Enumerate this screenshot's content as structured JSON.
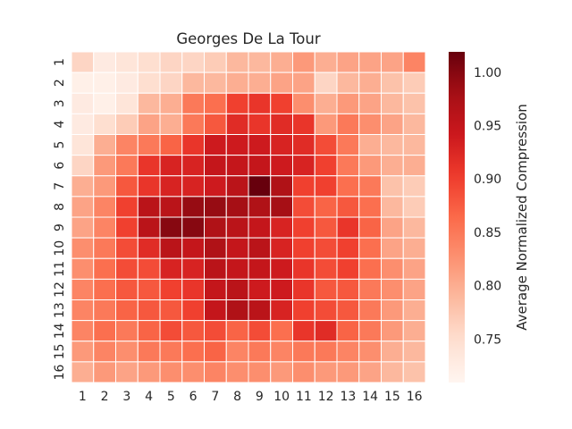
{
  "chart_data": {
    "type": "heatmap",
    "title": "Georges De La Tour",
    "xlabel": "",
    "ylabel": "",
    "x_categories": [
      "1",
      "2",
      "3",
      "4",
      "5",
      "6",
      "7",
      "8",
      "9",
      "10",
      "11",
      "12",
      "13",
      "14",
      "15",
      "16"
    ],
    "y_categories": [
      "1",
      "2",
      "3",
      "4",
      "5",
      "6",
      "7",
      "8",
      "9",
      "10",
      "11",
      "12",
      "13",
      "14",
      "15",
      "16"
    ],
    "values": [
      [
        0.76,
        0.73,
        0.74,
        0.75,
        0.76,
        0.76,
        0.77,
        0.79,
        0.79,
        0.8,
        0.82,
        0.8,
        0.81,
        0.81,
        0.81,
        0.84
      ],
      [
        0.72,
        0.72,
        0.73,
        0.75,
        0.76,
        0.79,
        0.79,
        0.8,
        0.8,
        0.81,
        0.81,
        0.76,
        0.79,
        0.8,
        0.78,
        0.77
      ],
      [
        0.73,
        0.72,
        0.74,
        0.79,
        0.8,
        0.85,
        0.86,
        0.9,
        0.91,
        0.9,
        0.83,
        0.8,
        0.82,
        0.81,
        0.79,
        0.78
      ],
      [
        0.73,
        0.75,
        0.77,
        0.81,
        0.8,
        0.85,
        0.88,
        0.92,
        0.91,
        0.92,
        0.91,
        0.82,
        0.85,
        0.83,
        0.81,
        0.79
      ],
      [
        0.74,
        0.8,
        0.84,
        0.85,
        0.87,
        0.91,
        0.94,
        0.94,
        0.94,
        0.93,
        0.92,
        0.89,
        0.85,
        0.8,
        0.79,
        0.79
      ],
      [
        0.76,
        0.82,
        0.85,
        0.91,
        0.93,
        0.93,
        0.95,
        0.95,
        0.95,
        0.94,
        0.93,
        0.9,
        0.85,
        0.82,
        0.8,
        0.8
      ],
      [
        0.8,
        0.82,
        0.88,
        0.91,
        0.93,
        0.93,
        0.94,
        0.96,
        1.02,
        0.97,
        0.9,
        0.9,
        0.86,
        0.85,
        0.78,
        0.77
      ],
      [
        0.81,
        0.84,
        0.9,
        0.96,
        0.96,
        0.99,
        0.99,
        0.98,
        0.97,
        0.98,
        0.89,
        0.87,
        0.88,
        0.86,
        0.79,
        0.77
      ],
      [
        0.81,
        0.84,
        0.9,
        0.96,
        1.0,
        1.0,
        0.97,
        0.96,
        0.95,
        0.93,
        0.9,
        0.88,
        0.91,
        0.87,
        0.81,
        0.79
      ],
      [
        0.83,
        0.85,
        0.89,
        0.92,
        0.96,
        0.95,
        0.97,
        0.95,
        0.96,
        0.93,
        0.9,
        0.89,
        0.9,
        0.86,
        0.81,
        0.8
      ],
      [
        0.83,
        0.86,
        0.89,
        0.89,
        0.93,
        0.93,
        0.96,
        0.95,
        0.95,
        0.94,
        0.91,
        0.89,
        0.9,
        0.86,
        0.83,
        0.81
      ],
      [
        0.84,
        0.86,
        0.88,
        0.88,
        0.9,
        0.91,
        0.95,
        0.96,
        0.94,
        0.94,
        0.91,
        0.88,
        0.88,
        0.85,
        0.83,
        0.81
      ],
      [
        0.84,
        0.85,
        0.87,
        0.88,
        0.88,
        0.9,
        0.95,
        0.97,
        0.96,
        0.93,
        0.9,
        0.89,
        0.88,
        0.85,
        0.82,
        0.8
      ],
      [
        0.84,
        0.86,
        0.85,
        0.87,
        0.89,
        0.88,
        0.89,
        0.87,
        0.89,
        0.86,
        0.91,
        0.92,
        0.87,
        0.85,
        0.82,
        0.8
      ],
      [
        0.82,
        0.84,
        0.83,
        0.85,
        0.85,
        0.86,
        0.87,
        0.84,
        0.85,
        0.84,
        0.85,
        0.85,
        0.84,
        0.83,
        0.8,
        0.79
      ],
      [
        0.8,
        0.82,
        0.81,
        0.82,
        0.83,
        0.83,
        0.84,
        0.83,
        0.83,
        0.82,
        0.83,
        0.82,
        0.82,
        0.81,
        0.79,
        0.78
      ]
    ],
    "colorbar": {
      "label": "Average Normalized Compression",
      "range": [
        0.71,
        1.02
      ],
      "ticks": [
        0.75,
        0.8,
        0.85,
        0.9,
        0.95,
        1.0
      ],
      "tick_labels": [
        "0.75",
        "0.80",
        "0.85",
        "0.90",
        "0.95",
        "1.00"
      ],
      "colormap": "Reds"
    },
    "grid": true,
    "cell_border_color": "#ffffff"
  }
}
